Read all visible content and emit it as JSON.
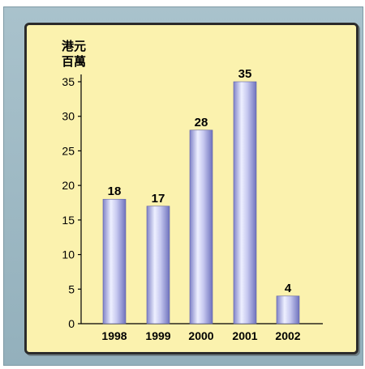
{
  "chart_data": {
    "type": "bar",
    "categories": [
      "1998",
      "1999",
      "2000",
      "2001",
      "2002"
    ],
    "values": [
      18,
      17,
      28,
      35,
      4
    ],
    "unit_label_line1": "港元",
    "unit_label_line2": "百萬",
    "ylim": [
      0,
      35
    ],
    "yticks": [
      0,
      5,
      10,
      15,
      20,
      25,
      30,
      35
    ],
    "grid": false,
    "bar_color": "#a6a8de"
  }
}
